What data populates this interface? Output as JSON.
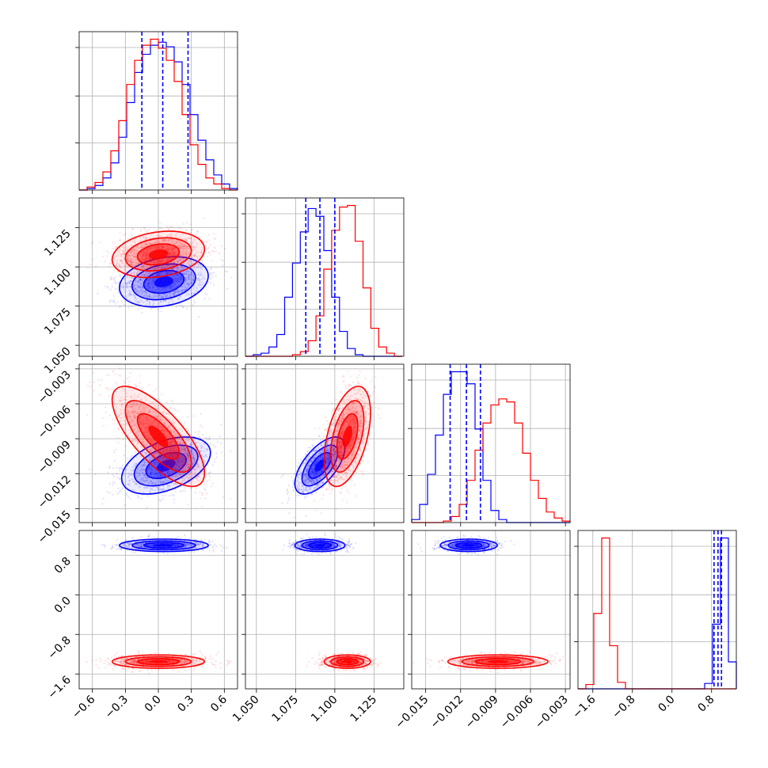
{
  "chart_data": {
    "type": "corner",
    "title": "",
    "colors": {
      "blue": "#0000ff",
      "red": "#ff0000",
      "grid": "#b0b0b0",
      "frame": "#000000"
    },
    "grid": true,
    "parameters": [
      {
        "range": [
          -0.72,
          0.72
        ],
        "ticks": [
          -0.6,
          -0.3,
          0.0,
          0.3,
          0.6
        ],
        "tick_labels": [
          "−0.6",
          "−0.3",
          "0.0",
          "0.3",
          "0.6"
        ]
      },
      {
        "range": [
          1.043,
          1.144
        ],
        "ticks": [
          1.05,
          1.075,
          1.1,
          1.125
        ],
        "tick_labels": [
          "1.050",
          "1.075",
          "1.100",
          "1.125"
        ]
      },
      {
        "range": [
          -0.0162,
          -0.0026
        ],
        "ticks": [
          -0.015,
          -0.012,
          -0.009,
          -0.006,
          -0.003
        ],
        "tick_labels": [
          "−0.015",
          "−0.012",
          "−0.009",
          "−0.006",
          "−0.003"
        ]
      },
      {
        "range": [
          -1.9,
          1.3
        ],
        "ticks": [
          -1.6,
          -0.8,
          0.0,
          0.8
        ],
        "tick_labels": [
          "−1.6",
          "−0.8",
          "0.0",
          "0.8"
        ]
      }
    ],
    "quantile_lines_blue": [
      [
        -0.15,
        0.04,
        0.27
      ],
      [
        1.0815,
        1.0905,
        1.1
      ],
      [
        -0.0129,
        -0.0115,
        -0.0103
      ],
      [
        0.85,
        0.93,
        1.0
      ]
    ],
    "histograms": [
      {
        "edges": [
          -0.72,
          -0.648,
          -0.576,
          -0.504,
          -0.432,
          -0.36,
          -0.288,
          -0.216,
          -0.144,
          -0.072,
          0.0,
          0.072,
          0.144,
          0.216,
          0.288,
          0.36,
          0.432,
          0.504,
          0.576,
          0.648,
          0.72
        ],
        "blue": [
          0,
          1,
          3,
          8,
          18,
          35,
          58,
          78,
          90,
          96,
          98,
          95,
          85,
          70,
          50,
          33,
          20,
          10,
          4,
          1
        ],
        "red": [
          0,
          2,
          5,
          12,
          26,
          46,
          70,
          86,
          96,
          100,
          94,
          86,
          72,
          50,
          30,
          17,
          8,
          4,
          1,
          0
        ]
      },
      {
        "edges": [
          1.043,
          1.048,
          1.053,
          1.058,
          1.063,
          1.068,
          1.073,
          1.078,
          1.083,
          1.088,
          1.093,
          1.098,
          1.103,
          1.108,
          1.113,
          1.118,
          1.123,
          1.128,
          1.133,
          1.138,
          1.143
        ],
        "blue": [
          0,
          1,
          2,
          6,
          14,
          38,
          60,
          80,
          95,
          90,
          68,
          38,
          16,
          5,
          1,
          0,
          0,
          0,
          0,
          0
        ],
        "red": [
          0,
          0,
          0,
          0,
          0,
          0,
          1,
          3,
          10,
          26,
          56,
          81,
          96,
          97,
          74,
          44,
          18,
          6,
          2,
          0
        ]
      },
      {
        "edges": [
          -0.0162,
          -0.01552,
          -0.01484,
          -0.01416,
          -0.01348,
          -0.0128,
          -0.01212,
          -0.01144,
          -0.01076,
          -0.01008,
          -0.0094,
          -0.00872,
          -0.00804,
          -0.00736,
          -0.00668,
          -0.006,
          -0.00532,
          -0.00464,
          -0.00396,
          -0.00328,
          -0.0026
        ],
        "blue": [
          2,
          12,
          32,
          58,
          85,
          100,
          100,
          92,
          62,
          28,
          8,
          2,
          0,
          0,
          0,
          0,
          0,
          0,
          0,
          0
        ],
        "red": [
          0,
          0,
          0,
          0,
          1,
          4,
          12,
          28,
          48,
          66,
          78,
          82,
          80,
          66,
          46,
          28,
          16,
          7,
          3,
          1
        ]
      },
      {
        "edges": [
          -1.9,
          -1.74,
          -1.58,
          -1.42,
          -1.26,
          -1.1,
          -0.94,
          -0.78,
          -0.62,
          -0.46,
          -0.3,
          -0.14,
          0.02,
          0.18,
          0.34,
          0.5,
          0.66,
          0.82,
          0.98,
          1.14,
          1.3
        ],
        "blue": [
          0,
          0,
          0,
          0,
          0,
          0,
          0,
          0,
          0,
          0,
          0,
          0,
          0,
          0,
          0,
          0,
          5,
          60,
          140,
          25
        ],
        "red": [
          0,
          4,
          70,
          140,
          40,
          6,
          0,
          0,
          0,
          0,
          0,
          0,
          0,
          0,
          0,
          0,
          0,
          0,
          0,
          0
        ]
      }
    ],
    "pairs": [
      {
        "x": 0,
        "y": 1,
        "blue": {
          "center": [
            0.05,
            1.0905
          ],
          "cov": [
            [
              0.037,
              0.00035
            ],
            [
              0.00035,
              5.78e-05
            ]
          ],
          "points": 1300
        },
        "red": {
          "center": [
            0.0,
            1.108
          ],
          "cov": [
            [
              0.04,
              0.00032
            ],
            [
              0.00032,
              4.94e-05
            ]
          ],
          "points": 1300
        }
      },
      {
        "x": 0,
        "y": 2,
        "blue": {
          "center": [
            0.07,
            -0.0113
          ],
          "cov": [
            [
              0.037,
              0.0001
            ],
            [
              0.0001,
              1.36e-06
            ]
          ],
          "points": 1200
        },
        "red": {
          "center": [
            0.0,
            -0.0088
          ],
          "cov": [
            [
              0.04,
              -0.0003
            ],
            [
              -0.0003,
              4.2e-06
            ]
          ],
          "points": 1200
        }
      },
      {
        "x": 0,
        "y": 3,
        "blue": {
          "center": [
            0.05,
            1.0
          ],
          "cov": [
            [
              0.037,
              0.0
            ],
            [
              0.0,
              0.0036
            ]
          ],
          "points": 1100
        },
        "red": {
          "center": [
            0.0,
            -1.35
          ],
          "cov": [
            [
              0.04,
              0.0
            ],
            [
              0.0,
              0.0042
            ]
          ],
          "points": 1100
        }
      },
      {
        "x": 1,
        "y": 2,
        "blue": {
          "center": [
            1.0905,
            -0.0113
          ],
          "cov": [
            [
              5.78e-05,
              5.6e-06
            ],
            [
              5.6e-06,
              1.36e-06
            ]
          ],
          "points": 1200
        },
        "red": {
          "center": [
            1.108,
            -0.0088
          ],
          "cov": [
            [
              4.94e-05,
              6.8e-06
            ],
            [
              6.8e-06,
              4.2e-06
            ]
          ],
          "points": 1200
        }
      },
      {
        "x": 1,
        "y": 3,
        "blue": {
          "center": [
            1.0905,
            1.0
          ],
          "cov": [
            [
              5.78e-05,
              0.0
            ],
            [
              0.0,
              0.0036
            ]
          ],
          "points": 1100
        },
        "red": {
          "center": [
            1.108,
            -1.35
          ],
          "cov": [
            [
              4.94e-05,
              0.0
            ],
            [
              0.0,
              0.0042
            ]
          ],
          "points": 1100
        }
      },
      {
        "x": 2,
        "y": 3,
        "blue": {
          "center": [
            -0.0113,
            1.0
          ],
          "cov": [
            [
              1.36e-06,
              0.0
            ],
            [
              0.0,
              0.0036
            ]
          ],
          "points": 1100
        },
        "red": {
          "center": [
            -0.0088,
            -1.35
          ],
          "cov": [
            [
              4.2e-06,
              0.0
            ],
            [
              0.0,
              0.0042
            ]
          ],
          "points": 1100
        }
      }
    ]
  }
}
